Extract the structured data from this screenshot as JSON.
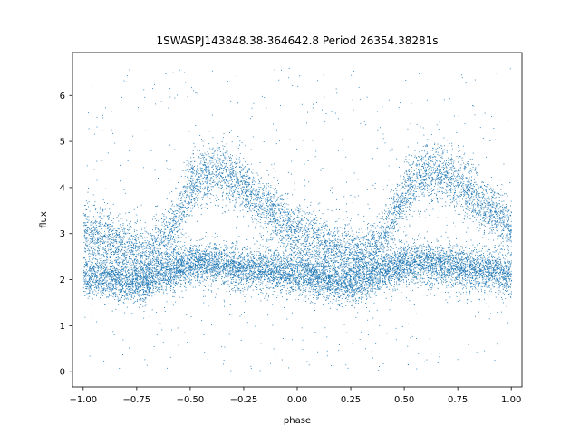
{
  "chart_data": {
    "type": "scatter",
    "title": "1SWASPJ143848.38-364642.8 Period 26354.38281s",
    "xlabel": "phase",
    "ylabel": "flux",
    "xlim": [
      -1.05,
      1.05
    ],
    "ylim": [
      -0.33,
      6.93
    ],
    "xticks": [
      -1.0,
      -0.75,
      -0.5,
      -0.25,
      0.0,
      0.25,
      0.5,
      0.75,
      1.0
    ],
    "xtick_labels": [
      "−1.00",
      "−0.75",
      "−0.50",
      "−0.25",
      "0.00",
      "0.25",
      "0.50",
      "0.75",
      "1.00"
    ],
    "yticks": [
      0,
      1,
      2,
      3,
      4,
      5,
      6
    ],
    "ytick_labels": [
      "0",
      "1",
      "2",
      "3",
      "4",
      "5",
      "6"
    ],
    "grid": false,
    "marker_color": "#1f77b4",
    "series": [
      {
        "components": [
          {
            "description": "lower band",
            "x": [
              -1.0,
              -0.9,
              -0.8,
              -0.75,
              -0.7,
              -0.6,
              -0.5,
              -0.4,
              -0.3,
              -0.2,
              -0.1,
              0.0,
              0.1,
              0.2,
              0.25,
              0.3,
              0.4,
              0.5,
              0.6,
              0.7,
              0.8,
              0.9,
              1.0
            ],
            "y": [
              2.1,
              2.05,
              1.95,
              1.95,
              2.0,
              2.2,
              2.35,
              2.35,
              2.3,
              2.25,
              2.2,
              2.15,
              2.05,
              1.95,
              1.95,
              2.0,
              2.2,
              2.35,
              2.35,
              2.3,
              2.25,
              2.2,
              2.1
            ]
          },
          {
            "description": "upper band",
            "x": [
              -1.0,
              -0.9,
              -0.8,
              -0.7,
              -0.6,
              -0.5,
              -0.4,
              -0.3,
              -0.2,
              -0.1,
              0.0,
              0.1,
              0.2,
              0.3,
              0.4,
              0.5,
              0.6,
              0.7,
              0.8,
              0.9,
              1.0
            ],
            "y": [
              3.0,
              2.9,
              2.7,
              2.5,
              3.0,
              4.0,
              4.4,
              4.2,
              3.8,
              3.4,
              3.0,
              2.8,
              2.6,
              2.5,
              2.9,
              3.9,
              4.35,
              4.3,
              3.9,
              3.5,
              3.1
            ]
          }
        ]
      }
    ]
  }
}
